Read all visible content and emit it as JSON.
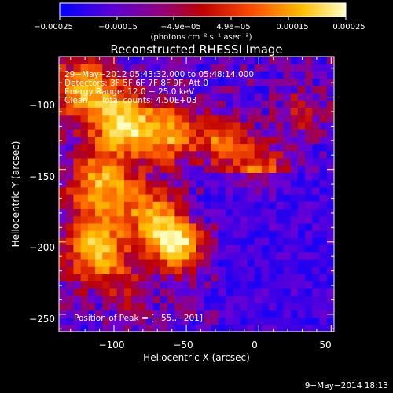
{
  "chart_data": {
    "type": "heatmap",
    "title": "Reconstructed RHESSI Image",
    "xlabel": "Heliocentric X (arcsec)",
    "ylabel": "Heliocentric Y (arcsec)",
    "xlim": [
      -138,
      52
    ],
    "ylim": [
      -262,
      -72
    ],
    "x_ticks": [
      -100,
      -50,
      0,
      50
    ],
    "y_ticks": [
      -100,
      -150,
      -200,
      -250
    ],
    "x_tick_labels": [
      "−100",
      "−50",
      "0",
      "50"
    ],
    "y_tick_labels": [
      "−100",
      "−150",
      "−200",
      "−250"
    ],
    "colorbar": {
      "range": [
        -0.00025,
        0.00025
      ],
      "tick_labels": [
        "−0.00025",
        "−0.00015",
        "−4.9e−05",
        "4.9e−05",
        "0.00015",
        "0.00025"
      ],
      "unit_label": "(photons cm⁻² s⁻¹ asec⁻²)",
      "colors": [
        "#0000ff",
        "#7000d0",
        "#c00000",
        "#ff6000",
        "#ffc000",
        "#ffffc0"
      ]
    },
    "annotations": [
      "29−May−2012 05:43:32.000 to 05:48:14.000",
      "Detectors: 3F 5F 6F 7F 8F 9F, Att 0",
      "Energy Range: 12.0 − 25.0 keV",
      "Clean     Total counts: 4.50E+03"
    ],
    "peak_label": "Position of Peak = [−55.,−201]",
    "peak": [
      -55,
      -201
    ],
    "total_counts": 4500,
    "energy_range_kev": [
      12.0,
      25.0
    ]
  },
  "footer": {
    "timestamp": "9−May−2014 18:13"
  }
}
